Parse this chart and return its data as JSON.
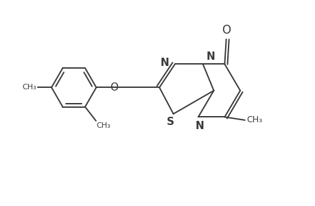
{
  "background": "#ffffff",
  "line_color": "#3a3a3a",
  "line_width": 1.4,
  "font_size": 10,
  "xlim": [
    0,
    10
  ],
  "ylim": [
    0,
    6.5
  ],
  "figsize": [
    4.6,
    3.0
  ],
  "dpi": 100
}
